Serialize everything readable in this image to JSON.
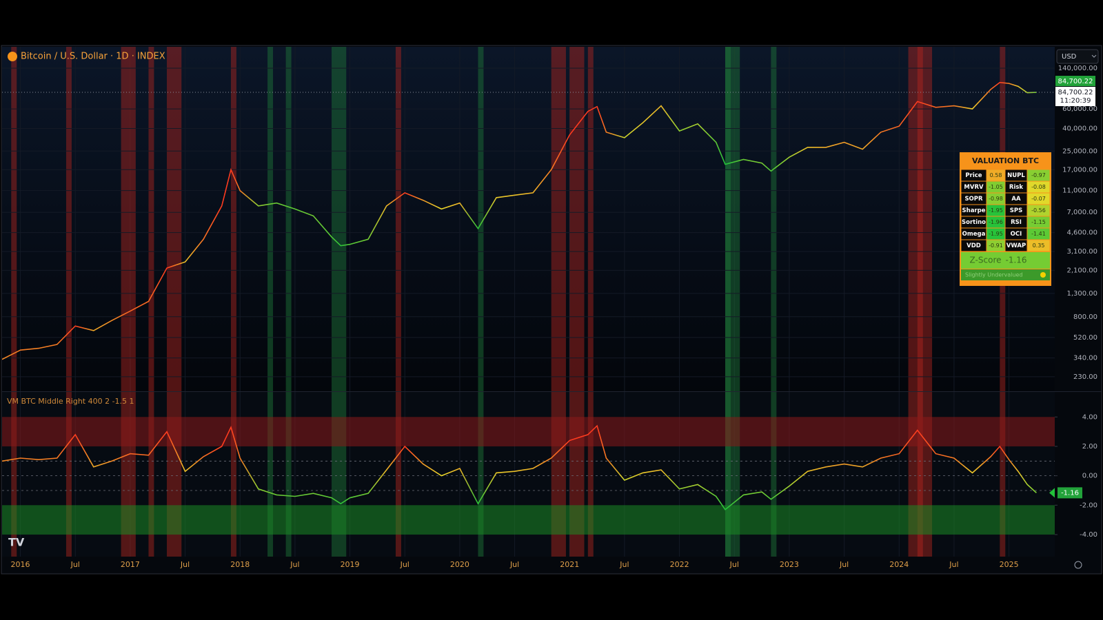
{
  "header": {
    "symbol": "Bitcoin / U.S. Dollar · 1D · INDEX",
    "currency": "USD",
    "time": "11:20:39"
  },
  "chart_data": [
    {
      "type": "line",
      "scale": "log",
      "x": [
        "2015-11",
        "2016-01",
        "2016-03",
        "2016-05",
        "2016-07",
        "2016-09",
        "2016-11",
        "2017-01",
        "2017-03",
        "2017-05",
        "2017-07",
        "2017-09",
        "2017-11",
        "2017-12",
        "2018-01",
        "2018-03",
        "2018-05",
        "2018-07",
        "2018-09",
        "2018-11",
        "2018-12",
        "2019-01",
        "2019-03",
        "2019-05",
        "2019-07",
        "2019-09",
        "2019-11",
        "2020-01",
        "2020-03",
        "2020-05",
        "2020-07",
        "2020-09",
        "2020-11",
        "2021-01",
        "2021-03",
        "2021-04",
        "2021-05",
        "2021-07",
        "2021-09",
        "2021-11",
        "2022-01",
        "2022-03",
        "2022-05",
        "2022-06",
        "2022-08",
        "2022-10",
        "2022-11",
        "2023-01",
        "2023-03",
        "2023-05",
        "2023-07",
        "2023-09",
        "2023-11",
        "2024-01",
        "2024-03",
        "2024-05",
        "2024-07",
        "2024-09",
        "2024-11",
        "2024-12",
        "2025-01",
        "2025-02",
        "2025-03",
        "2025-04"
      ],
      "values": [
        330,
        400,
        415,
        450,
        660,
        600,
        740,
        900,
        1100,
        2200,
        2500,
        4000,
        8000,
        17000,
        11000,
        8000,
        8500,
        7500,
        6500,
        4200,
        3500,
        3600,
        4000,
        8000,
        10500,
        9000,
        7500,
        8500,
        5000,
        9500,
        10000,
        10500,
        17000,
        35000,
        57000,
        63000,
        37000,
        33000,
        45000,
        64000,
        38000,
        44000,
        30000,
        19000,
        21000,
        19500,
        16500,
        22000,
        27000,
        27000,
        30000,
        26000,
        37000,
        42000,
        70000,
        62000,
        64000,
        60000,
        90000,
        104000,
        102000,
        96000,
        84000,
        84700.22
      ],
      "last_value_label": "84,700.22",
      "xlim": [
        "2015-11",
        "2025-06"
      ],
      "xticks": [
        {
          "value": "2016-01",
          "label": "2016"
        },
        {
          "value": "2016-07",
          "label": "Jul"
        },
        {
          "value": "2017-01",
          "label": "2017"
        },
        {
          "value": "2017-07",
          "label": "Jul"
        },
        {
          "value": "2018-01",
          "label": "2018"
        },
        {
          "value": "2018-07",
          "label": "Jul"
        },
        {
          "value": "2019-01",
          "label": "2019"
        },
        {
          "value": "2019-07",
          "label": "Jul"
        },
        {
          "value": "2020-01",
          "label": "2020"
        },
        {
          "value": "2020-07",
          "label": "Jul"
        },
        {
          "value": "2021-01",
          "label": "2021"
        },
        {
          "value": "2021-07",
          "label": "Jul"
        },
        {
          "value": "2022-01",
          "label": "2022"
        },
        {
          "value": "2022-07",
          "label": "Jul"
        },
        {
          "value": "2023-01",
          "label": "2023"
        },
        {
          "value": "2023-07",
          "label": "Jul"
        },
        {
          "value": "2024-01",
          "label": "2024"
        },
        {
          "value": "2024-07",
          "label": "Jul"
        },
        {
          "value": "2025-01",
          "label": "2025"
        }
      ],
      "ylim": [
        170,
        218000
      ],
      "yticks": [
        {
          "value": 140000,
          "label": "140,000.00"
        },
        {
          "value": 60000,
          "label": "60,000.00"
        },
        {
          "value": 40000,
          "label": "40,000.00"
        },
        {
          "value": 25000,
          "label": "25,000.00"
        },
        {
          "value": 17000,
          "label": "17,000.00"
        },
        {
          "value": 11000,
          "label": "11,000.00"
        },
        {
          "value": 7000,
          "label": "7,000.00"
        },
        {
          "value": 4600,
          "label": "4,600.00"
        },
        {
          "value": 3100,
          "label": "3,100.00"
        },
        {
          "value": 2100,
          "label": "2,100.00"
        },
        {
          "value": 1300,
          "label": "1,300.00"
        },
        {
          "value": 800,
          "label": "800.00"
        },
        {
          "value": 520,
          "label": "520.00"
        },
        {
          "value": 340,
          "label": "340.00"
        },
        {
          "value": 230,
          "label": "230.00"
        }
      ],
      "grid": true,
      "highlights": [
        {
          "start": "2015-12",
          "end": "2015-12",
          "color": "#b3261e"
        },
        {
          "start": "2016-06",
          "end": "2016-06",
          "color": "#b3261e"
        },
        {
          "start": "2016-12",
          "end": "2017-01",
          "color": "#b3261e"
        },
        {
          "start": "2017-03",
          "end": "2017-03",
          "color": "#b3261e"
        },
        {
          "start": "2017-05",
          "end": "2017-06",
          "color": "#b3261e"
        },
        {
          "start": "2017-12",
          "end": "2017-12",
          "color": "#b3261e"
        },
        {
          "start": "2019-06",
          "end": "2019-06",
          "color": "#b3261e"
        },
        {
          "start": "2020-11",
          "end": "2020-12",
          "color": "#b3261e"
        },
        {
          "start": "2021-01",
          "end": "2021-02",
          "color": "#b3261e"
        },
        {
          "start": "2021-03",
          "end": "2021-03",
          "color": "#b3261e"
        },
        {
          "start": "2024-02",
          "end": "2024-03",
          "color": "#b3261e"
        },
        {
          "start": "2024-03",
          "end": "2024-04",
          "color": "#b3261e"
        },
        {
          "start": "2024-12",
          "end": "2024-12",
          "color": "#b3261e"
        },
        {
          "start": "2018-04",
          "end": "2018-04",
          "color": "#1f7a3a"
        },
        {
          "start": "2018-06",
          "end": "2018-06",
          "color": "#1f7a3a"
        },
        {
          "start": "2018-11",
          "end": "2018-12",
          "color": "#1f7a3a"
        },
        {
          "start": "2020-03",
          "end": "2020-03",
          "color": "#1f7a3a"
        },
        {
          "start": "2022-06",
          "end": "2022-06",
          "color": "#1f7a3a"
        },
        {
          "start": "2022-06",
          "end": "2022-07",
          "color": "#1f7a3a"
        },
        {
          "start": "2022-11",
          "end": "2022-11",
          "color": "#1f7a3a"
        }
      ]
    },
    {
      "type": "line",
      "title": "VM BTC Middle Right 400 2 -1.5 1",
      "x": [
        "2015-11",
        "2016-01",
        "2016-03",
        "2016-05",
        "2016-07",
        "2016-09",
        "2016-11",
        "2017-01",
        "2017-03",
        "2017-05",
        "2017-07",
        "2017-09",
        "2017-11",
        "2017-12",
        "2018-01",
        "2018-03",
        "2018-05",
        "2018-07",
        "2018-09",
        "2018-11",
        "2018-12",
        "2019-01",
        "2019-03",
        "2019-05",
        "2019-07",
        "2019-09",
        "2019-11",
        "2020-01",
        "2020-03",
        "2020-05",
        "2020-07",
        "2020-09",
        "2020-11",
        "2021-01",
        "2021-03",
        "2021-04",
        "2021-05",
        "2021-07",
        "2021-09",
        "2021-11",
        "2022-01",
        "2022-03",
        "2022-05",
        "2022-06",
        "2022-08",
        "2022-10",
        "2022-11",
        "2023-01",
        "2023-03",
        "2023-05",
        "2023-07",
        "2023-09",
        "2023-11",
        "2024-01",
        "2024-03",
        "2024-05",
        "2024-07",
        "2024-09",
        "2024-11",
        "2024-12",
        "2025-01",
        "2025-02",
        "2025-03",
        "2025-04"
      ],
      "values": [
        1.0,
        1.2,
        1.1,
        1.2,
        2.8,
        0.6,
        1.0,
        1.5,
        1.4,
        3.0,
        0.3,
        1.3,
        2.0,
        3.3,
        1.2,
        -0.9,
        -1.3,
        -1.4,
        -1.2,
        -1.5,
        -1.9,
        -1.5,
        -1.2,
        0.4,
        2.0,
        0.8,
        0,
        0.5,
        -1.9,
        0.2,
        0.3,
        0.5,
        1.2,
        2.4,
        2.8,
        3.4,
        1.2,
        -0.3,
        0.2,
        0.4,
        -0.9,
        -0.6,
        -1.4,
        -2.3,
        -1.3,
        -1.1,
        -1.6,
        -0.7,
        0.3,
        0.6,
        0.8,
        0.6,
        1.2,
        1.5,
        3.1,
        1.5,
        1.2,
        0.2,
        1.3,
        2.0,
        1.1,
        0.3,
        -0.6,
        -1.16
      ],
      "xlim": [
        "2015-11",
        "2025-06"
      ],
      "ylim": [
        -5.5,
        5.7
      ],
      "yticks": [
        {
          "value": 4,
          "label": "4.00"
        },
        {
          "value": 2,
          "label": "2.00"
        },
        {
          "value": 0,
          "label": "0.00"
        },
        {
          "value": -2,
          "label": "-2.00"
        },
        {
          "value": -4,
          "label": "-4.00"
        }
      ],
      "zones": [
        {
          "from": 2,
          "to": 4,
          "color": "#8b1a1a"
        },
        {
          "from": -4,
          "to": -2,
          "color": "#1c8a24"
        }
      ],
      "reference_levels": [
        1,
        0,
        -1
      ],
      "line_colors": {
        "high": "#ff3b1f",
        "mid": "#e8d92a",
        "low": "#22c23a"
      }
    }
  ],
  "valuation_table": {
    "title": "VALUATION BTC",
    "rows": [
      [
        "Price",
        0.58,
        "NUPL",
        -0.97
      ],
      [
        "MVRV",
        -1.05,
        "Risk",
        -0.08
      ],
      [
        "SOPR",
        -0.98,
        "AA",
        -0.07
      ],
      [
        "Sharpe",
        -1.95,
        "SPS",
        -0.56
      ],
      [
        "Sortino",
        -1.96,
        "RSI",
        -1.15
      ],
      [
        "Omega",
        -1.95,
        "OCI",
        -1.41
      ],
      [
        "VDD",
        -0.91,
        "VWAP",
        0.35
      ]
    ],
    "z_score_label": "Z-Score",
    "z_score": -1.16,
    "status": "Slightly Undervalued"
  }
}
